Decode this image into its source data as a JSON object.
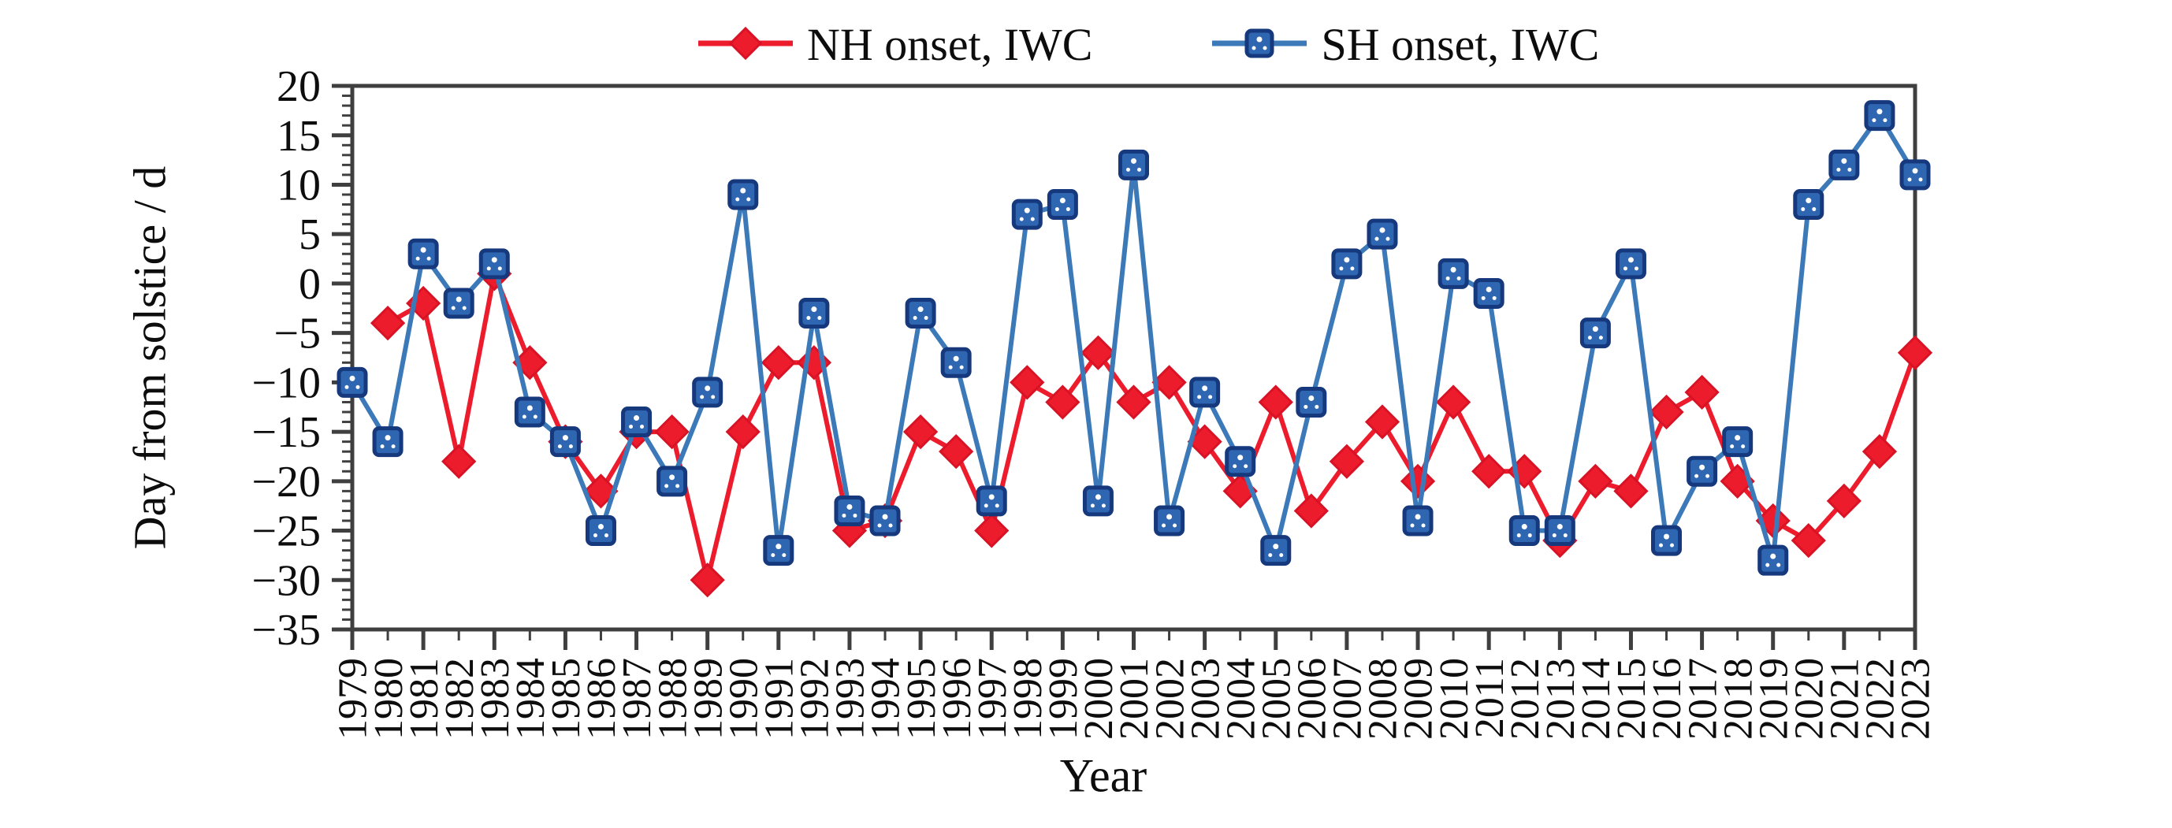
{
  "legend": {
    "nh_label": "NH onset, IWC",
    "sh_label": "SH onset, IWC"
  },
  "chart_data": {
    "type": "line",
    "title": "",
    "xlabel": "Year",
    "ylabel": "Day from solstice / d",
    "xlim": [
      1979,
      2023
    ],
    "ylim": [
      -35,
      20
    ],
    "ytick_step": 5,
    "ytick_minor_step": 1,
    "grid": false,
    "legend_position": "top-center",
    "frame_color": "#3f3f3f",
    "x": [
      1979,
      1980,
      1981,
      1982,
      1983,
      1984,
      1985,
      1986,
      1987,
      1988,
      1989,
      1990,
      1991,
      1992,
      1993,
      1994,
      1995,
      1996,
      1997,
      1998,
      1999,
      2000,
      2001,
      2002,
      2003,
      2004,
      2005,
      2006,
      2007,
      2008,
      2009,
      2010,
      2011,
      2012,
      2013,
      2014,
      2015,
      2016,
      2017,
      2018,
      2019,
      2020,
      2021,
      2022,
      2023
    ],
    "series": [
      {
        "name": "NH onset, IWC",
        "marker": "diamond",
        "color": "#ed1c2d",
        "marker_fill": "#ed1c2d",
        "marker_edge": "#d81325",
        "values": [
          null,
          -4,
          -2,
          -18,
          1,
          -8,
          -16,
          -21,
          -15,
          -15,
          -30,
          -15,
          -8,
          -8,
          -25,
          -24,
          -15,
          -17,
          -25,
          -10,
          -12,
          -7,
          -12,
          -10,
          -16,
          -21,
          -12,
          -23,
          -18,
          -14,
          -20,
          -12,
          -19,
          -19,
          -26,
          -20,
          -21,
          -13,
          -11,
          -20,
          -24,
          -26,
          -22,
          -17,
          -7
        ]
      },
      {
        "name": "SH onset, IWC",
        "marker": "square",
        "color": "#3c79b8",
        "marker_fill": "#2f66b1",
        "marker_edge": "#16387c",
        "values": [
          -10,
          -16,
          3,
          -2,
          2,
          -13,
          -16,
          -25,
          -14,
          -20,
          -11,
          9,
          -27,
          -3,
          -23,
          -24,
          -3,
          -8,
          -22,
          7,
          8,
          -22,
          12,
          -24,
          -11,
          -18,
          -27,
          -12,
          2,
          5,
          -24,
          1,
          -1,
          -25,
          -25,
          -5,
          2,
          -26,
          -19,
          -16,
          -28,
          8,
          12,
          17,
          11
        ]
      }
    ]
  }
}
